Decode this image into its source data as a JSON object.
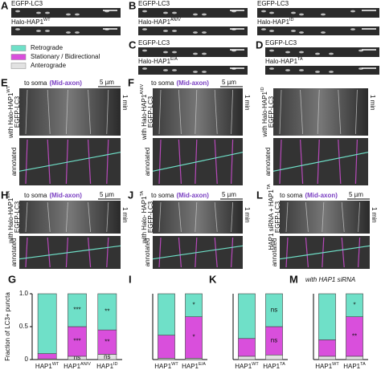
{
  "panels": {
    "A": {
      "letter": "A",
      "top": "EGFP-LC3",
      "bottom": {
        "text": "Halo-HAP1",
        "sup": "WT"
      }
    },
    "B": {
      "letter": "B",
      "items": [
        {
          "top": "EGFP-LC3",
          "bottom": {
            "text": "Halo-HAP1",
            "sup": "AN/V"
          }
        },
        {
          "top": "EGFP-LC3",
          "bottom": {
            "text": "Halo-HAP1",
            "sup": "ID"
          }
        }
      ]
    },
    "C": {
      "letter": "C",
      "top": "EGFP-LC3",
      "bottom": {
        "text": "Halo-HAP1",
        "sup": "E/A"
      }
    },
    "D": {
      "letter": "D",
      "top": "EGFP-LC3",
      "bottom": {
        "text": "Halo-HAP1",
        "sup": "TA"
      }
    },
    "E": {
      "letter": "E",
      "dir": "to soma",
      "region": "(Mid-axon)",
      "scale_x": "5 µm",
      "scale_t": "1 min",
      "constructs": [
        {
          "text": "with Halo-HAP1",
          "sup": "WT"
        }
      ],
      "reporter": "EGFP-LC3",
      "annot": "annotated"
    },
    "F": {
      "letter": "F",
      "dir": "to soma",
      "region": "(Mid-axon)",
      "scale_x": "5 µm",
      "scale_t": "1 min",
      "constructs": [
        {
          "text": "with Halo-HAP1",
          "sup": "AN/V"
        },
        {
          "text": "with Halo-HAP1",
          "sup": "ID"
        }
      ],
      "reporter": "EGFP-LC3",
      "annot": "annotated"
    },
    "H": {
      "letter": "H",
      "dir": "to soma",
      "region": "(Mid-axon)",
      "scale_x": "5 µm",
      "scale_t": "1 min",
      "constructs": [
        {
          "text": "with Halo-HAP1",
          "sup": "E/A"
        }
      ],
      "reporter": "EGFP-LC3",
      "annot": "annotated"
    },
    "J": {
      "letter": "J",
      "dir": "to soma",
      "region": "(Mid-axon)",
      "scale_x": "5 µm",
      "scale_t": "1 min",
      "constructs": [
        {
          "text": "with Halo- HAP1",
          "sup": "TA"
        }
      ],
      "reporter": "EGFP-LC3",
      "annot": "annotated"
    },
    "L": {
      "letter": "L",
      "dir": "to soma",
      "region": "(Mid-axon)",
      "scale_x": "5 µm",
      "scale_t": "1 min",
      "constructs": [
        {
          "text": "HAP1 siRNA + HAP1",
          "sup": "TA"
        }
      ],
      "reporter": "EGFP-LC3",
      "annot": "annotated"
    }
  },
  "chart_data": [
    {
      "type": "stacked-bar",
      "panel": "G",
      "ylabel": "Fraction of LC3+ puncta",
      "ylim": [
        0,
        1
      ],
      "yticks": [
        0,
        0.5,
        {
          "value": 1,
          "label": "1.0"
        }
      ],
      "categories": [
        {
          "text": "HAP1",
          "sup": "WT"
        },
        {
          "text": "HAP1",
          "sup": "AN/V"
        },
        {
          "text": "HAP1",
          "sup": "ID"
        }
      ],
      "series": [
        {
          "name": "Anterograde",
          "color": "#e2e2e2",
          "values": [
            0.01,
            0.05,
            0.08
          ],
          "significance": [
            null,
            "ns",
            "ns"
          ]
        },
        {
          "name": "Stationary / Bidirectional",
          "color": "#d94fdc",
          "values": [
            0.08,
            0.45,
            0.37
          ],
          "significance": [
            null,
            "***",
            "**"
          ]
        },
        {
          "name": "Retrograde",
          "color": "#6fe0c8",
          "values": [
            0.91,
            0.5,
            0.55
          ],
          "significance": [
            null,
            "***",
            "**"
          ]
        }
      ]
    },
    {
      "type": "stacked-bar",
      "panel": "I",
      "ylim": [
        0,
        1
      ],
      "categories": [
        {
          "text": "HAP1",
          "sup": "WT"
        },
        {
          "text": "HAP1",
          "sup": "E/A"
        }
      ],
      "series": [
        {
          "name": "Anterograde",
          "color": "#e2e2e2",
          "values": [
            0.02,
            0.02
          ]
        },
        {
          "name": "Stationary / Bidirectional",
          "color": "#d94fdc",
          "values": [
            0.35,
            0.63
          ],
          "significance": [
            null,
            "*"
          ]
        },
        {
          "name": "Retrograde",
          "color": "#6fe0c8",
          "values": [
            0.63,
            0.35
          ],
          "significance": [
            null,
            "*"
          ]
        }
      ]
    },
    {
      "type": "stacked-bar",
      "panel": "K",
      "ylim": [
        0,
        1
      ],
      "categories": [
        {
          "text": "HAP1",
          "sup": "WT"
        },
        {
          "text": "HAP1",
          "sup": "TA"
        }
      ],
      "series": [
        {
          "name": "Anterograde",
          "color": "#e2e2e2",
          "values": [
            0.05,
            0.07
          ]
        },
        {
          "name": "Stationary / Bidirectional",
          "color": "#d94fdc",
          "values": [
            0.27,
            0.43
          ],
          "significance": [
            null,
            "ns"
          ]
        },
        {
          "name": "Retrograde",
          "color": "#6fe0c8",
          "values": [
            0.68,
            0.5
          ],
          "significance": [
            null,
            "ns"
          ]
        }
      ]
    },
    {
      "type": "stacked-bar",
      "panel": "M",
      "subtitle": "with HAP1 siRNA",
      "ylim": [
        0,
        1
      ],
      "categories": [
        {
          "text": "HAP1",
          "sup": "WT"
        },
        {
          "text": "HAP1",
          "sup": "TA"
        }
      ],
      "series": [
        {
          "name": "Anterograde",
          "color": "#e2e2e2",
          "values": [
            0.05,
            0.05
          ]
        },
        {
          "name": "Stationary / Bidirectional",
          "color": "#d94fdc",
          "values": [
            0.25,
            0.6
          ],
          "significance": [
            null,
            "**"
          ]
        },
        {
          "name": "Retrograde",
          "color": "#6fe0c8",
          "values": [
            0.7,
            0.35
          ],
          "significance": [
            null,
            "*"
          ]
        }
      ]
    }
  ]
}
